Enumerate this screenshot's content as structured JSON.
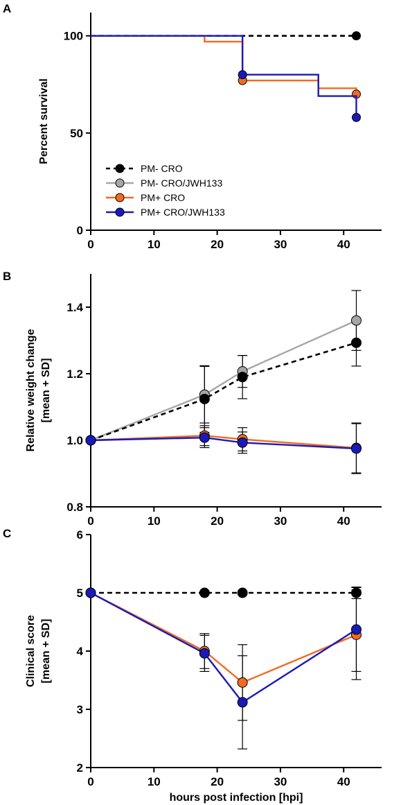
{
  "colors": {
    "pm_minus_cro": "#000000",
    "pm_minus_cro_jwh": "#a6a6a6",
    "pm_plus_cro": "#f26b21",
    "pm_plus_cro_jwh": "#1a1ab8"
  },
  "chart_data": [
    {
      "panel": "A",
      "type": "line",
      "step": true,
      "title": "",
      "xlabel": "",
      "ylabel": "Percent survival",
      "xlim": [
        0,
        46
      ],
      "ylim": [
        0,
        112
      ],
      "xticks": [
        0,
        10,
        20,
        30,
        40
      ],
      "yticks": [
        0,
        50,
        100
      ],
      "legend": {
        "placement": "bottom-left",
        "entries": [
          {
            "label": "PM-   CRO",
            "color_key": "pm_minus_cro",
            "dashed": true
          },
          {
            "label": "PM-   CRO/JWH133",
            "color_key": "pm_minus_cro_jwh",
            "dashed": false
          },
          {
            "label": "PM+   CRO",
            "color_key": "pm_plus_cro",
            "dashed": false
          },
          {
            "label": "PM+  CRO/JWH133",
            "color_key": "pm_plus_cro_jwh",
            "dashed": false
          }
        ]
      },
      "series": [
        {
          "name": "PM-   CRO",
          "color_key": "pm_minus_cro",
          "dashed": true,
          "x": [
            0,
            42
          ],
          "y": [
            100,
            100
          ],
          "marker_x": [
            42
          ],
          "marker_y": [
            100
          ]
        },
        {
          "name": "PM+   CRO",
          "color_key": "pm_plus_cro",
          "dashed": false,
          "x": [
            0,
            18,
            24,
            36,
            42
          ],
          "y": [
            100,
            97,
            77,
            73,
            70
          ],
          "marker_x": [
            24,
            42
          ],
          "marker_y": [
            77,
            70
          ]
        },
        {
          "name": "PM+  CRO/JWH133",
          "color_key": "pm_plus_cro_jwh",
          "dashed": false,
          "x": [
            0,
            22,
            24,
            36,
            42
          ],
          "y": [
            100,
            100,
            80,
            69,
            58
          ],
          "marker_x": [
            24,
            42
          ],
          "marker_y": [
            80,
            58
          ]
        }
      ]
    },
    {
      "panel": "B",
      "type": "line",
      "title": "",
      "xlabel": "",
      "ylabel": "Relative weight change",
      "ylabel2": "[mean + SD]",
      "xlim": [
        0,
        46
      ],
      "ylim": [
        0.8,
        1.5
      ],
      "xticks": [
        0,
        10,
        20,
        30,
        40
      ],
      "yticks": [
        0.8,
        1.0,
        1.2,
        1.4
      ],
      "ytick_labels": [
        "0.8",
        "1.0",
        "1.2",
        "1.4"
      ],
      "x": [
        0,
        18,
        24,
        42
      ],
      "series": [
        {
          "name": "PM-   CRO/JWH133",
          "color_key": "pm_minus_cro_jwh",
          "dashed": false,
          "values": [
            1.0,
            1.137,
            1.207,
            1.36
          ],
          "sd": [
            0,
            0.085,
            0.048,
            0.09
          ]
        },
        {
          "name": "PM-   CRO",
          "color_key": "pm_minus_cro",
          "dashed": true,
          "values": [
            1.0,
            1.124,
            1.19,
            1.293
          ],
          "sd": [
            0,
            0.1,
            0.065,
            0.07
          ]
        },
        {
          "name": "PM+   CRO",
          "color_key": "pm_plus_cro",
          "dashed": false,
          "values": [
            1.0,
            1.014,
            1.003,
            0.977
          ],
          "sd": [
            0,
            0.03,
            0.035,
            0.075
          ]
        },
        {
          "name": "PM+  CRO/JWH133",
          "color_key": "pm_plus_cro_jwh",
          "dashed": false,
          "values": [
            1.0,
            1.008,
            0.993,
            0.975
          ],
          "sd": [
            0,
            0.03,
            0.032,
            0.075
          ]
        }
      ]
    },
    {
      "panel": "C",
      "type": "line",
      "title": "",
      "xlabel": "hours post infection [hpi]",
      "ylabel": "Clinical score",
      "ylabel2": "[mean + SD]",
      "xlim": [
        0,
        46
      ],
      "ylim": [
        2,
        6
      ],
      "xticks": [
        0,
        10,
        20,
        30,
        40
      ],
      "yticks": [
        2,
        3,
        4,
        5,
        6
      ],
      "x": [
        0,
        18,
        24,
        42
      ],
      "series": [
        {
          "name": "PM-   CRO",
          "color_key": "pm_minus_cro",
          "dashed": true,
          "values": [
            5,
            5,
            5,
            5
          ],
          "sd": [
            0,
            0,
            0,
            0.1
          ]
        },
        {
          "name": "PM+   CRO",
          "color_key": "pm_plus_cro",
          "dashed": false,
          "values": [
            5,
            4.0,
            3.46,
            4.28
          ],
          "sd": [
            0,
            0.3,
            0.65,
            0.77
          ]
        },
        {
          "name": "PM+  CRO/JWH133",
          "color_key": "pm_plus_cro_jwh",
          "dashed": false,
          "values": [
            5,
            3.96,
            3.12,
            4.37
          ],
          "sd": [
            0,
            0.31,
            0.8,
            0.72
          ]
        }
      ]
    }
  ]
}
